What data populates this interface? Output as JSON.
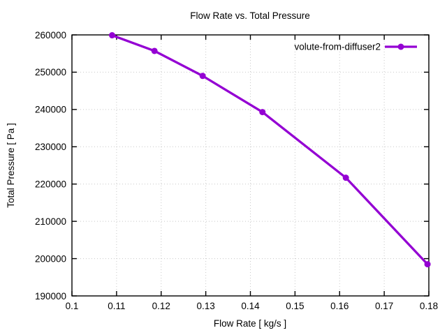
{
  "window": {
    "background": "#ffffff"
  },
  "chart_data": {
    "type": "line",
    "title": "Flow Rate vs. Total Pressure",
    "xlabel": "Flow Rate [ kg/s ]",
    "ylabel": "Total Pressure [ Pa ]",
    "xlim": [
      0.1,
      0.18
    ],
    "ylim": [
      190000,
      260000
    ],
    "x_ticks": [
      0.1,
      0.11,
      0.12,
      0.13,
      0.14,
      0.15,
      0.16,
      0.17,
      0.18
    ],
    "x_tick_labels": [
      "0.1",
      "0.11",
      "0.12",
      "0.13",
      "0.14",
      "0.15",
      "0.16",
      "0.17",
      "0.18"
    ],
    "y_ticks": [
      190000,
      200000,
      210000,
      220000,
      230000,
      240000,
      250000,
      260000
    ],
    "y_tick_labels": [
      "190000",
      "200000",
      "210000",
      "220000",
      "230000",
      "240000",
      "250000",
      "260000"
    ],
    "grid": true,
    "grid_style": "dotted",
    "legend_position": "top-right-inside",
    "series": [
      {
        "name": "volute-from-diffuser2",
        "color": "#9400d3",
        "marker": "filled-circle",
        "line_width": 3.3,
        "marker_radius": 4.5,
        "x": [
          0.109,
          0.1185,
          0.1293,
          0.1427,
          0.1614,
          0.1797
        ],
        "y": [
          259900,
          255700,
          249000,
          239300,
          221700,
          198500
        ]
      }
    ]
  },
  "colors": {
    "line": "#9400d3",
    "grid": "#c8c8c8",
    "axis": "#000000",
    "text": "#000000",
    "background": "#ffffff"
  }
}
